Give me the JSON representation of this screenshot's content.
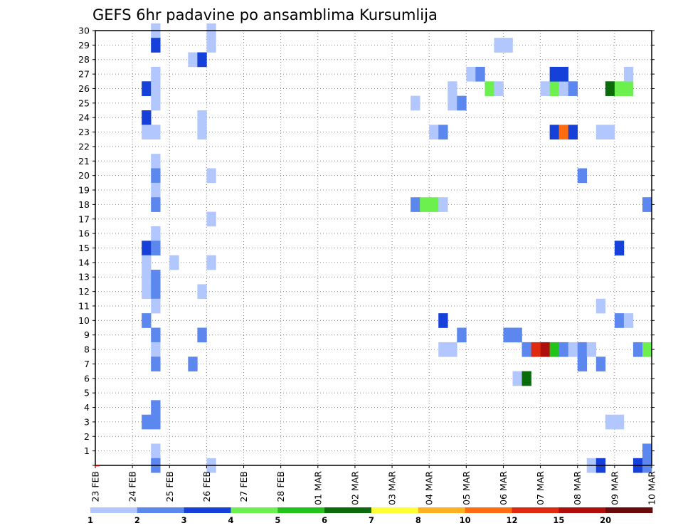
{
  "chart_data": {
    "type": "heatmap",
    "title": "GEFS 6hr padavine po ansamblima Kursumlija",
    "xlabel": "",
    "ylabel": "",
    "x_tick_labels": [
      "23 FEB",
      "24 FEB",
      "25 FEB",
      "26 FEB",
      "27 FEB",
      "28 FEB",
      "01 MAR",
      "02 MAR",
      "03 MAR",
      "04 MAR",
      "05 MAR",
      "06 MAR",
      "07 MAR",
      "08 MAR",
      "09 MAR",
      "10 MAR"
    ],
    "y_tick_labels": [
      "1",
      "2",
      "3",
      "4",
      "5",
      "6",
      "7",
      "8",
      "9",
      "10",
      "11",
      "12",
      "13",
      "14",
      "15",
      "16",
      "17",
      "18",
      "19",
      "20",
      "21",
      "22",
      "23",
      "24",
      "25",
      "26",
      "27",
      "28",
      "29",
      "30"
    ],
    "y_range": [
      0,
      30
    ],
    "x_range_days": [
      0,
      15
    ],
    "grid": true,
    "legend_placement": "bottom",
    "legend": {
      "labels": [
        "1",
        "2",
        "3",
        "4",
        "5",
        "6",
        "7",
        "8",
        "10",
        "12",
        "15",
        "20"
      ],
      "colors": [
        "#b3c7ff",
        "#5b87ee",
        "#1540d9",
        "#6cf04d",
        "#22c41a",
        "#0a6b0a",
        "#ffff33",
        "#ffb020",
        "#ff6d10",
        "#e02a10",
        "#b00e0a",
        "#6a0a0a"
      ]
    },
    "cells_note": "x = day offset from 23 FEB (each cell is 6 hours = 0.25 day wide), y = ensemble member bin, c = color class index into legend.colors",
    "cells": [
      {
        "x": 1.5,
        "y": 30,
        "c": 0
      },
      {
        "x": 1.5,
        "y": 29,
        "c": 2
      },
      {
        "x": 1.25,
        "y": 26,
        "c": 2
      },
      {
        "x": 1.5,
        "y": 27,
        "c": 0
      },
      {
        "x": 1.5,
        "y": 26,
        "c": 0
      },
      {
        "x": 1.5,
        "y": 25,
        "c": 0
      },
      {
        "x": 1.25,
        "y": 24,
        "c": 2
      },
      {
        "x": 1.25,
        "y": 23,
        "c": 0
      },
      {
        "x": 1.5,
        "y": 23,
        "c": 0
      },
      {
        "x": 1.5,
        "y": 21,
        "c": 0
      },
      {
        "x": 1.5,
        "y": 20,
        "c": 1
      },
      {
        "x": 1.5,
        "y": 19,
        "c": 0
      },
      {
        "x": 1.5,
        "y": 18,
        "c": 1
      },
      {
        "x": 1.5,
        "y": 16,
        "c": 0
      },
      {
        "x": 1.25,
        "y": 15,
        "c": 2
      },
      {
        "x": 1.5,
        "y": 15,
        "c": 1
      },
      {
        "x": 1.25,
        "y": 14,
        "c": 0
      },
      {
        "x": 1.25,
        "y": 13,
        "c": 0
      },
      {
        "x": 1.25,
        "y": 12,
        "c": 0
      },
      {
        "x": 1.5,
        "y": 13,
        "c": 1
      },
      {
        "x": 1.5,
        "y": 12,
        "c": 1
      },
      {
        "x": 1.5,
        "y": 11,
        "c": 0
      },
      {
        "x": 1.25,
        "y": 10,
        "c": 1
      },
      {
        "x": 1.5,
        "y": 9,
        "c": 1
      },
      {
        "x": 1.5,
        "y": 8,
        "c": 0
      },
      {
        "x": 1.5,
        "y": 7,
        "c": 1
      },
      {
        "x": 1.5,
        "y": 4,
        "c": 1
      },
      {
        "x": 1.25,
        "y": 3,
        "c": 1
      },
      {
        "x": 1.5,
        "y": 3,
        "c": 1
      },
      {
        "x": 1.5,
        "y": 1,
        "c": 0
      },
      {
        "x": 1.5,
        "y": 0,
        "c": 1
      },
      {
        "x": 2.0,
        "y": 14,
        "c": 0
      },
      {
        "x": 2.5,
        "y": 28,
        "c": 0
      },
      {
        "x": 2.75,
        "y": 28,
        "c": 2
      },
      {
        "x": 3.0,
        "y": 30,
        "c": 0
      },
      {
        "x": 3.0,
        "y": 29,
        "c": 0
      },
      {
        "x": 2.75,
        "y": 24,
        "c": 0
      },
      {
        "x": 2.75,
        "y": 23,
        "c": 0
      },
      {
        "x": 3.0,
        "y": 20,
        "c": 0
      },
      {
        "x": 3.0,
        "y": 17,
        "c": 0
      },
      {
        "x": 3.0,
        "y": 14,
        "c": 0
      },
      {
        "x": 2.75,
        "y": 12,
        "c": 0
      },
      {
        "x": 2.75,
        "y": 9,
        "c": 1
      },
      {
        "x": 2.5,
        "y": 7,
        "c": 1
      },
      {
        "x": 3.0,
        "y": 0,
        "c": 0
      },
      {
        "x": 8.5,
        "y": 25,
        "c": 0
      },
      {
        "x": 8.5,
        "y": 18,
        "c": 1
      },
      {
        "x": 8.75,
        "y": 18,
        "c": 3
      },
      {
        "x": 9.0,
        "y": 18,
        "c": 3
      },
      {
        "x": 9.25,
        "y": 18,
        "c": 0
      },
      {
        "x": 9.0,
        "y": 23,
        "c": 0
      },
      {
        "x": 9.25,
        "y": 23,
        "c": 1
      },
      {
        "x": 9.25,
        "y": 10,
        "c": 2
      },
      {
        "x": 9.25,
        "y": 8,
        "c": 0
      },
      {
        "x": 9.5,
        "y": 8,
        "c": 0
      },
      {
        "x": 9.5,
        "y": 26,
        "c": 0
      },
      {
        "x": 9.5,
        "y": 25,
        "c": 0
      },
      {
        "x": 9.75,
        "y": 25,
        "c": 1
      },
      {
        "x": 10.0,
        "y": 27,
        "c": 0
      },
      {
        "x": 10.25,
        "y": 27,
        "c": 1
      },
      {
        "x": 9.75,
        "y": 9,
        "c": 1
      },
      {
        "x": 10.5,
        "y": 26,
        "c": 3
      },
      {
        "x": 10.75,
        "y": 26,
        "c": 0
      },
      {
        "x": 10.75,
        "y": 29,
        "c": 0
      },
      {
        "x": 11.0,
        "y": 29,
        "c": 0
      },
      {
        "x": 11.0,
        "y": 9,
        "c": 1
      },
      {
        "x": 11.25,
        "y": 9,
        "c": 1
      },
      {
        "x": 11.5,
        "y": 8,
        "c": 1
      },
      {
        "x": 11.75,
        "y": 8,
        "c": 9
      },
      {
        "x": 12.0,
        "y": 8,
        "c": 10
      },
      {
        "x": 12.25,
        "y": 8,
        "c": 4
      },
      {
        "x": 12.5,
        "y": 8,
        "c": 1
      },
      {
        "x": 12.75,
        "y": 8,
        "c": 0
      },
      {
        "x": 11.25,
        "y": 6,
        "c": 0
      },
      {
        "x": 11.5,
        "y": 6,
        "c": 5
      },
      {
        "x": 12.0,
        "y": 26,
        "c": 0
      },
      {
        "x": 12.25,
        "y": 26,
        "c": 3
      },
      {
        "x": 12.5,
        "y": 26,
        "c": 0
      },
      {
        "x": 12.75,
        "y": 26,
        "c": 1
      },
      {
        "x": 12.25,
        "y": 27,
        "c": 2
      },
      {
        "x": 12.5,
        "y": 27,
        "c": 2
      },
      {
        "x": 12.25,
        "y": 23,
        "c": 2
      },
      {
        "x": 12.5,
        "y": 23,
        "c": 8
      },
      {
        "x": 12.75,
        "y": 23,
        "c": 2
      },
      {
        "x": 13.0,
        "y": 20,
        "c": 1
      },
      {
        "x": 13.0,
        "y": 8,
        "c": 1
      },
      {
        "x": 13.25,
        "y": 8,
        "c": 0
      },
      {
        "x": 13.0,
        "y": 7,
        "c": 1
      },
      {
        "x": 13.5,
        "y": 7,
        "c": 1
      },
      {
        "x": 13.5,
        "y": 23,
        "c": 0
      },
      {
        "x": 13.75,
        "y": 23,
        "c": 0
      },
      {
        "x": 13.5,
        "y": 11,
        "c": 0
      },
      {
        "x": 13.25,
        "y": 0,
        "c": 0
      },
      {
        "x": 13.5,
        "y": 0,
        "c": 2
      },
      {
        "x": 13.75,
        "y": 26,
        "c": 5
      },
      {
        "x": 14.0,
        "y": 26,
        "c": 3
      },
      {
        "x": 14.25,
        "y": 26,
        "c": 3
      },
      {
        "x": 14.25,
        "y": 27,
        "c": 0
      },
      {
        "x": 14.0,
        "y": 15,
        "c": 2
      },
      {
        "x": 14.0,
        "y": 10,
        "c": 1
      },
      {
        "x": 14.25,
        "y": 10,
        "c": 0
      },
      {
        "x": 13.75,
        "y": 3,
        "c": 0
      },
      {
        "x": 14.0,
        "y": 3,
        "c": 0
      },
      {
        "x": 14.5,
        "y": 8,
        "c": 1
      },
      {
        "x": 14.75,
        "y": 8,
        "c": 3
      },
      {
        "x": 14.75,
        "y": 18,
        "c": 1
      },
      {
        "x": 14.75,
        "y": 1,
        "c": 1
      },
      {
        "x": 14.5,
        "y": 0,
        "c": 2
      },
      {
        "x": 14.75,
        "y": 0,
        "c": 1
      }
    ]
  }
}
